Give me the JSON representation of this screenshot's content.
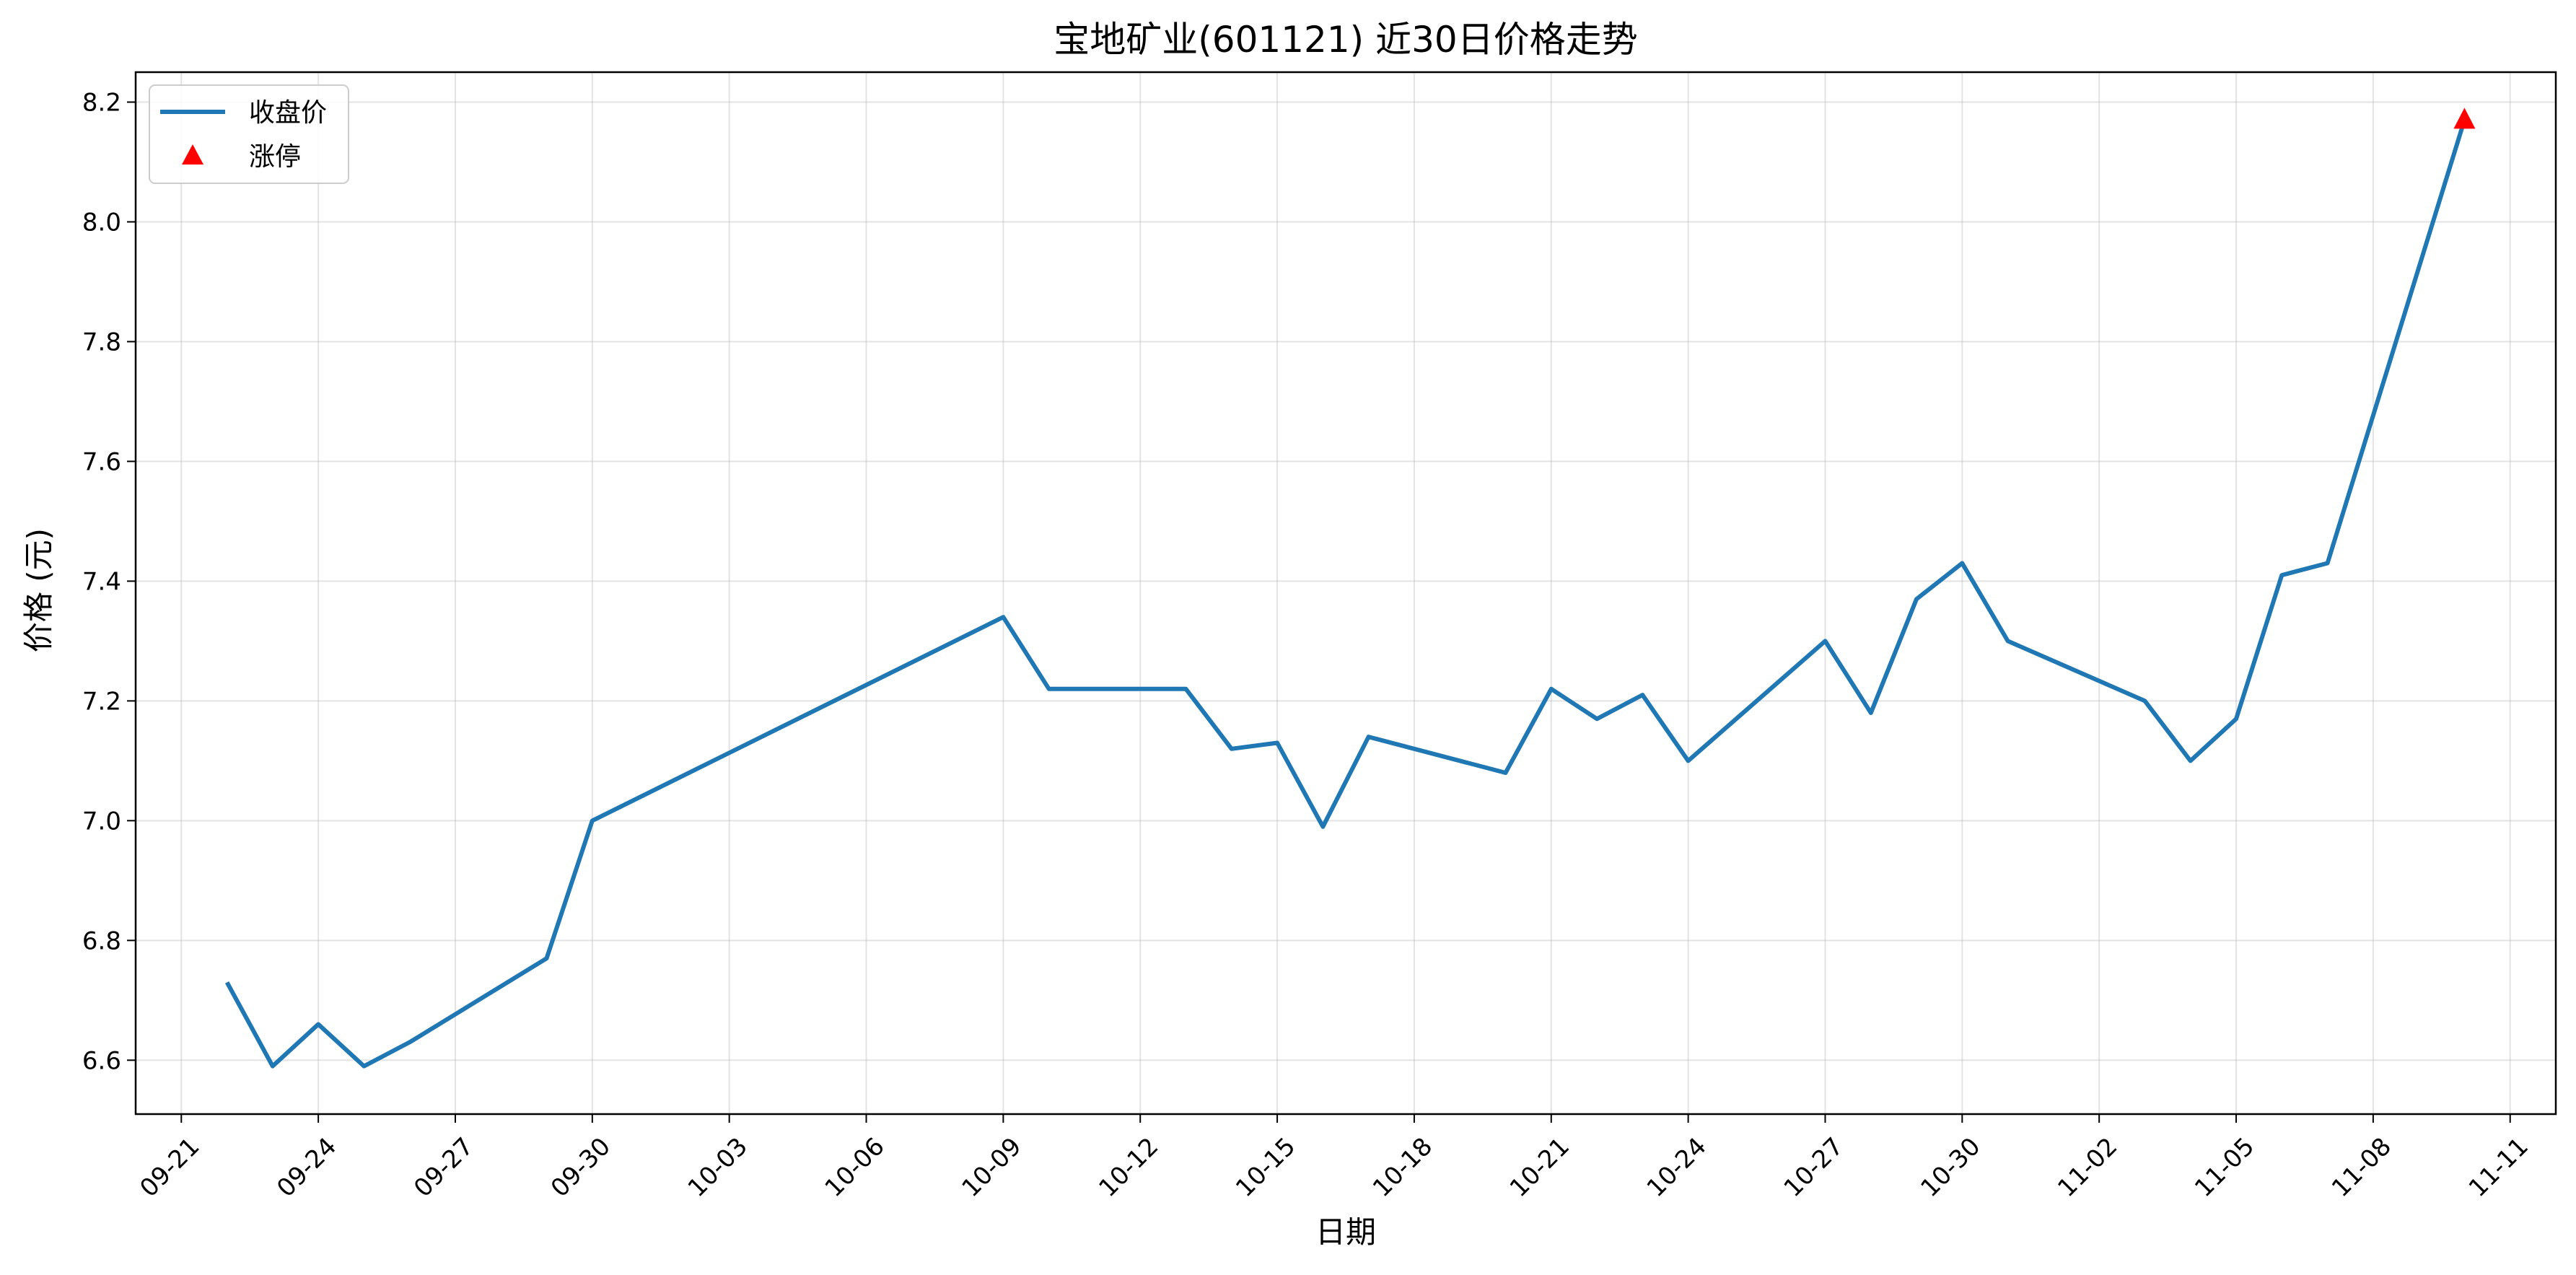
{
  "chart_data": {
    "type": "line",
    "title": "宝地矿业(601121) 近30日价格走势",
    "xlabel": "日期",
    "ylabel": "价格 (元)",
    "ylim": [
      6.51,
      8.25
    ],
    "xlim": [
      "2024-09-20",
      "2024-11-12"
    ],
    "grid": true,
    "legend_position": "top-left",
    "x_tick_labels": [
      "09-21",
      "09-24",
      "09-27",
      "09-30",
      "10-03",
      "10-06",
      "10-09",
      "10-12",
      "10-15",
      "10-18",
      "10-21",
      "10-24",
      "10-27",
      "10-30",
      "11-02",
      "11-05",
      "11-08",
      "11-11"
    ],
    "y_tick_labels": [
      "6.6",
      "6.8",
      "7.0",
      "7.2",
      "7.4",
      "7.6",
      "7.8",
      "8.0",
      "8.2"
    ],
    "series": [
      {
        "name": "收盘价",
        "type": "line",
        "color": "#1f77b4",
        "points": [
          {
            "date": "2024-09-22",
            "value": 6.73
          },
          {
            "date": "2024-09-23",
            "value": 6.59
          },
          {
            "date": "2024-09-24",
            "value": 6.66
          },
          {
            "date": "2024-09-25",
            "value": 6.59
          },
          {
            "date": "2024-09-26",
            "value": 6.63
          },
          {
            "date": "2024-09-29",
            "value": 6.77
          },
          {
            "date": "2024-09-30",
            "value": 7.0
          },
          {
            "date": "2024-10-09",
            "value": 7.34
          },
          {
            "date": "2024-10-10",
            "value": 7.22
          },
          {
            "date": "2024-10-13",
            "value": 7.22
          },
          {
            "date": "2024-10-14",
            "value": 7.12
          },
          {
            "date": "2024-10-15",
            "value": 7.13
          },
          {
            "date": "2024-10-16",
            "value": 6.99
          },
          {
            "date": "2024-10-17",
            "value": 7.14
          },
          {
            "date": "2024-10-20",
            "value": 7.08
          },
          {
            "date": "2024-10-21",
            "value": 7.22
          },
          {
            "date": "2024-10-22",
            "value": 7.17
          },
          {
            "date": "2024-10-23",
            "value": 7.21
          },
          {
            "date": "2024-10-24",
            "value": 7.1
          },
          {
            "date": "2024-10-27",
            "value": 7.3
          },
          {
            "date": "2024-10-28",
            "value": 7.18
          },
          {
            "date": "2024-10-29",
            "value": 7.37
          },
          {
            "date": "2024-10-30",
            "value": 7.43
          },
          {
            "date": "2024-10-31",
            "value": 7.3
          },
          {
            "date": "2024-11-03",
            "value": 7.2
          },
          {
            "date": "2024-11-04",
            "value": 7.1
          },
          {
            "date": "2024-11-05",
            "value": 7.17
          },
          {
            "date": "2024-11-06",
            "value": 7.41
          },
          {
            "date": "2024-11-07",
            "value": 7.43
          },
          {
            "date": "2024-11-10",
            "value": 8.17
          }
        ]
      },
      {
        "name": "涨停",
        "type": "scatter",
        "marker": "triangle-up",
        "color": "#ff0000",
        "points": [
          {
            "date": "2024-11-10",
            "value": 8.17
          }
        ]
      }
    ]
  }
}
